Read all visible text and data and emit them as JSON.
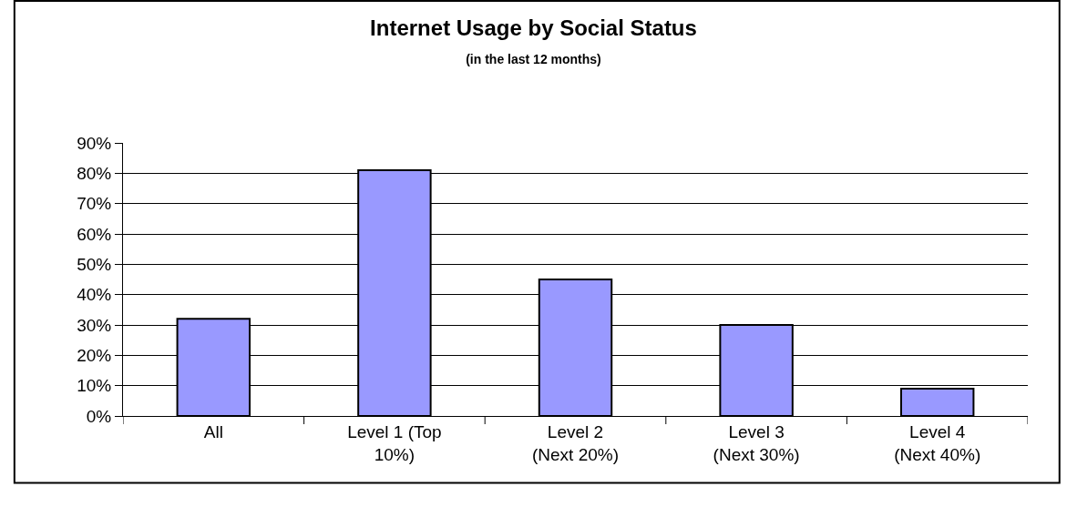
{
  "chart_data": {
    "type": "bar",
    "title": "Internet Usage by Social Status",
    "subtitle": "(in the last 12 months)",
    "categories": [
      "All",
      "Level 1 (Top 10%)",
      "Level 2 (Next 20%)",
      "Level 3 (Next 30%)",
      "Level 4 (Next 40%)"
    ],
    "values": [
      32,
      81,
      45,
      30,
      9
    ],
    "color": "#9999ff",
    "ylim": [
      0,
      90
    ],
    "yticks": [
      {
        "value": 0,
        "label": "0%"
      },
      {
        "value": 10,
        "label": "10%"
      },
      {
        "value": 20,
        "label": "20%"
      },
      {
        "value": 30,
        "label": "30%"
      },
      {
        "value": 40,
        "label": "40%"
      },
      {
        "value": 50,
        "label": "50%"
      },
      {
        "value": 60,
        "label": "60%"
      },
      {
        "value": 70,
        "label": "70%"
      },
      {
        "value": 80,
        "label": "80%"
      },
      {
        "value": 90,
        "label": "90%"
      }
    ],
    "grid": "y"
  }
}
